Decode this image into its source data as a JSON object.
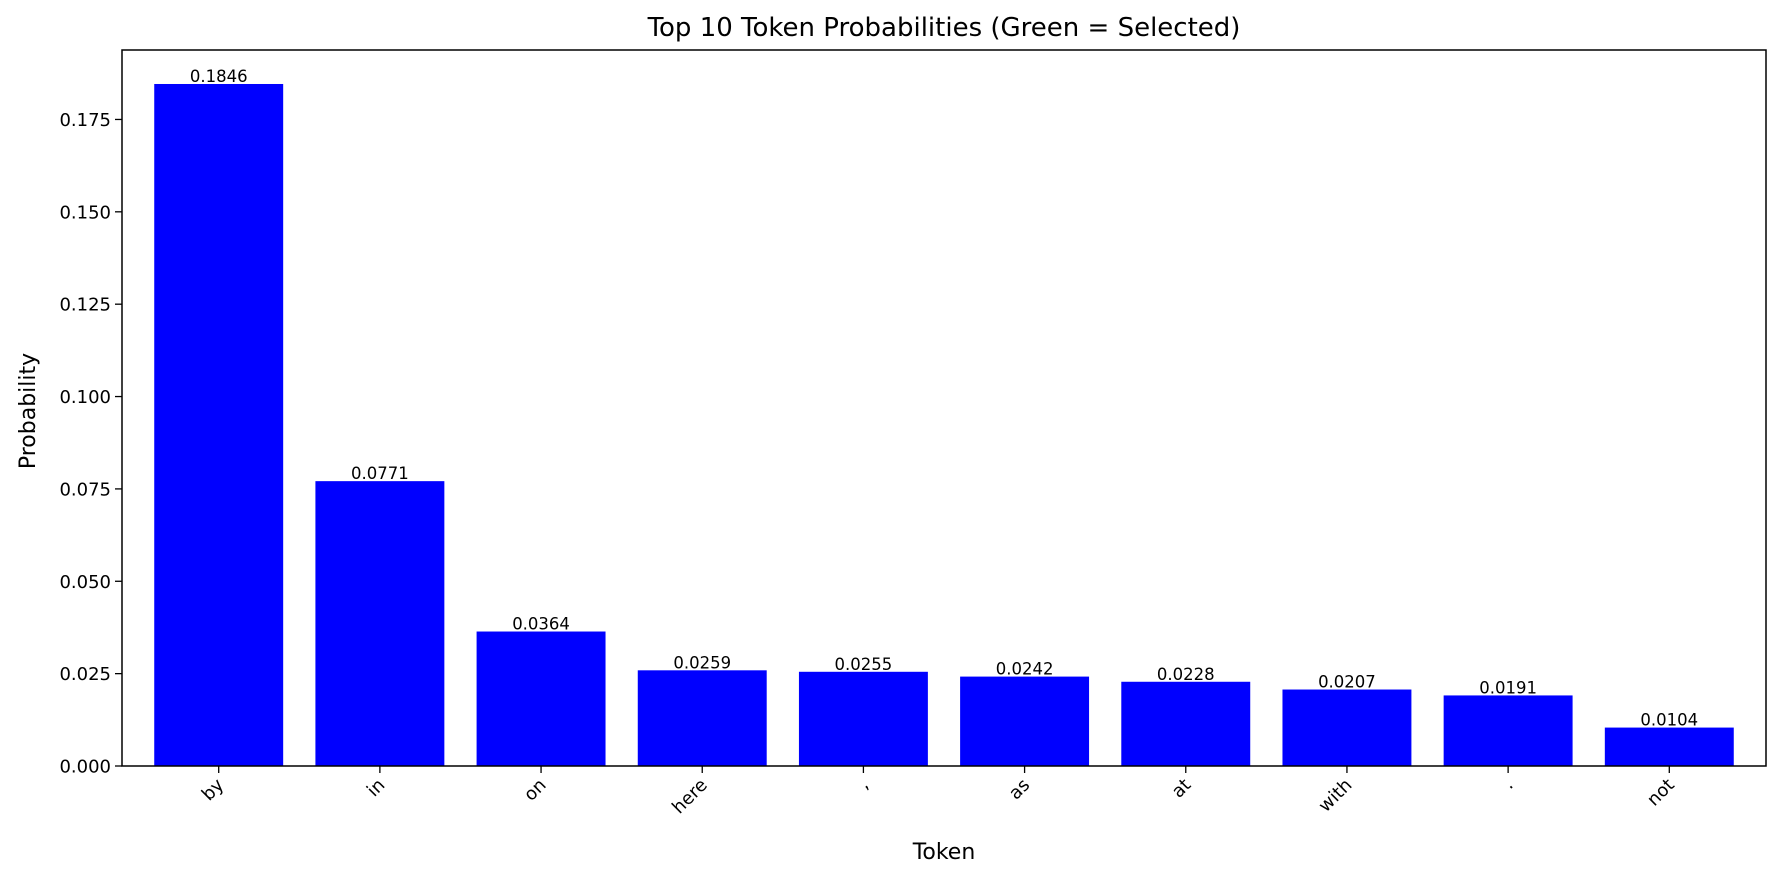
{
  "chart_data": {
    "type": "bar",
    "title": "Top 10 Token Probabilities (Green = Selected)",
    "xlabel": "Token",
    "ylabel": "Probability",
    "categories": [
      "by",
      "in",
      "on",
      "here",
      ",",
      "as",
      "at",
      "with",
      ".",
      "not"
    ],
    "values": [
      0.1846,
      0.0771,
      0.0364,
      0.0259,
      0.0255,
      0.0242,
      0.0228,
      0.0207,
      0.0191,
      0.0104
    ],
    "value_labels": [
      "0.1846",
      "0.0771",
      "0.0364",
      "0.0259",
      "0.0255",
      "0.0242",
      "0.0228",
      "0.0207",
      "0.0191",
      "0.0104"
    ],
    "ylim": [
      0,
      0.1938
    ],
    "yticks": [
      0.0,
      0.025,
      0.05,
      0.075,
      0.1,
      0.125,
      0.15,
      0.175
    ],
    "ytick_labels": [
      "0.000",
      "0.025",
      "0.050",
      "0.075",
      "0.100",
      "0.125",
      "0.150",
      "0.175"
    ],
    "bar_color": "#0000ff",
    "grid": false,
    "legend": "none"
  }
}
